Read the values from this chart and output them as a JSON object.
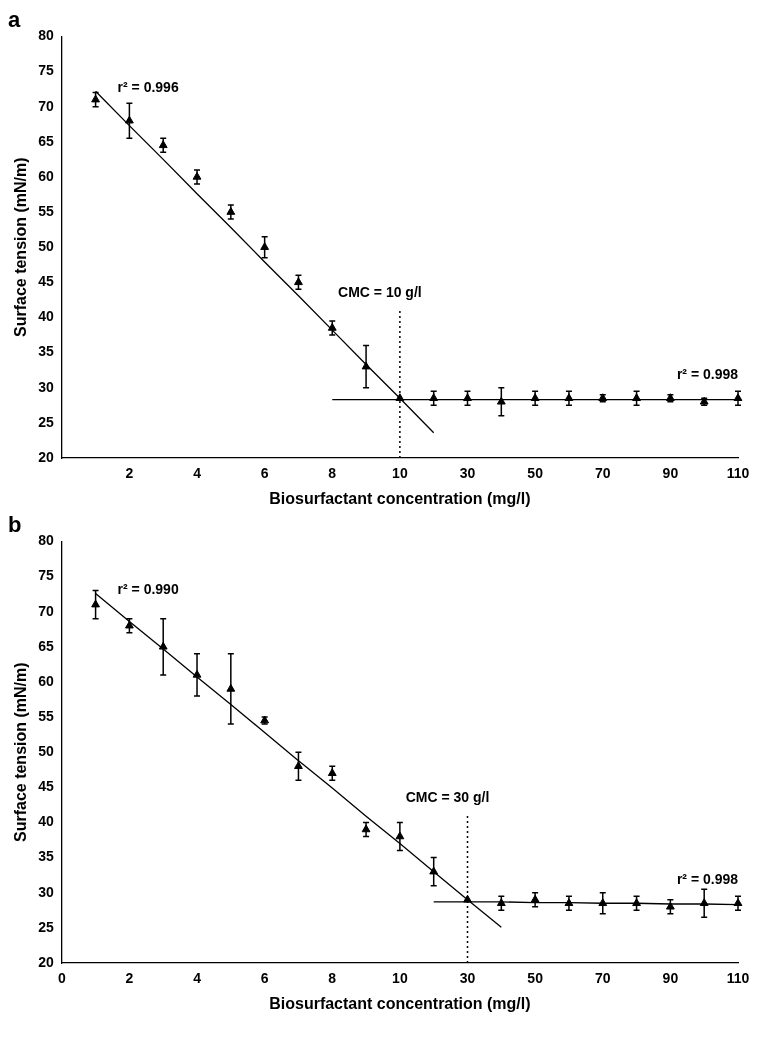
{
  "chart_data": [
    {
      "type": "scatter",
      "title": "a",
      "xlabel": "Biosurfactant concentration (mg/l)",
      "ylabel": "Surface tension (mN/m)",
      "categories": [
        null,
        null,
        "2",
        null,
        "4",
        null,
        "6",
        null,
        "8",
        null,
        "10",
        null,
        "30",
        null,
        "50",
        null,
        "70",
        null,
        "90",
        null,
        "110"
      ],
      "series": [
        {
          "type": "scatter",
          "color": "#000000",
          "marker": "triangle",
          "values": [
            null,
            71,
            68,
            64.5,
            60,
            55,
            50,
            45,
            38.5,
            33,
            28.5,
            28.5,
            28.5,
            28,
            28.5,
            28.5,
            28.5,
            28.5,
            28.5,
            28,
            28.5
          ],
          "errors": [
            null,
            1,
            2.5,
            1,
            1,
            1,
            1.5,
            1,
            1,
            3,
            null,
            1,
            1,
            2,
            1,
            1,
            0.5,
            1,
            0.5,
            0.5,
            1
          ]
        },
        {
          "type": "line",
          "name": "r² = 0.996",
          "color": "#000000",
          "marker": "none",
          "line_style": "solid",
          "values": [
            null,
            72.2,
            67.3,
            62.5,
            57.6,
            52.8,
            47.9,
            43.1,
            38.2,
            33.3,
            28.5,
            23.6,
            null,
            null,
            null,
            null,
            null,
            null,
            null,
            null,
            null
          ]
        },
        {
          "type": "line",
          "name": "r² = 0.998",
          "color": "#000000",
          "marker": "none",
          "line_style": "solid",
          "values": [
            null,
            null,
            null,
            null,
            null,
            null,
            null,
            null,
            28.3,
            28.3,
            28.3,
            28.3,
            28.3,
            28.3,
            28.3,
            28.3,
            28.3,
            28.3,
            28.3,
            28.3,
            28.3
          ]
        }
      ],
      "ylim": [
        20,
        80
      ],
      "yticks": [
        20,
        25,
        30,
        35,
        40,
        45,
        50,
        55,
        60,
        65,
        70,
        75,
        80
      ],
      "grid": false,
      "legend": false,
      "ref_lines": [
        {
          "axis": "x",
          "value": "10",
          "label": "CMC = 10 g/l",
          "line_style": "dotted",
          "color": "#000000"
        }
      ]
    },
    {
      "type": "scatter",
      "title": "b",
      "xlabel": "Biosurfactant concentration (mg/l)",
      "ylabel": "Surface tension (mN/m)",
      "categories": [
        "0",
        null,
        "2",
        null,
        "4",
        null,
        "6",
        null,
        "8",
        null,
        "10",
        null,
        "30",
        null,
        "50",
        null,
        "70",
        null,
        "90",
        null,
        "110"
      ],
      "series": [
        {
          "type": "scatter",
          "color": "#000000",
          "marker": "triangle",
          "values": [
            null,
            71,
            68,
            65,
            61,
            59,
            54.5,
            48,
            47,
            39,
            38,
            33,
            29,
            28.5,
            29,
            28.5,
            28.5,
            28.5,
            28,
            28.5,
            28.5
          ],
          "errors": [
            null,
            2,
            1,
            4,
            3,
            5,
            0.5,
            2,
            1,
            1,
            2,
            2,
            null,
            1,
            1,
            1,
            1.5,
            1,
            1,
            2,
            1
          ]
        },
        {
          "type": "line",
          "name": "r² = 0.990",
          "color": "#000000",
          "marker": "none",
          "line_style": "solid",
          "values": [
            null,
            72.6,
            68.6,
            64.7,
            60.7,
            56.8,
            52.8,
            48.8,
            44.9,
            40.9,
            37,
            33,
            29,
            25.1,
            null,
            null,
            null,
            null,
            null,
            null,
            null
          ]
        },
        {
          "type": "line",
          "name": "r² = 0.998",
          "color": "#000000",
          "marker": "none",
          "line_style": "solid",
          "values": [
            null,
            null,
            null,
            null,
            null,
            null,
            null,
            null,
            null,
            null,
            null,
            28.7,
            28.7,
            28.7,
            28.6,
            28.6,
            28.5,
            28.5,
            28.4,
            28.4,
            28.3
          ]
        }
      ],
      "ylim": [
        20,
        80
      ],
      "yticks": [
        20,
        25,
        30,
        35,
        40,
        45,
        50,
        55,
        60,
        65,
        70,
        75,
        80
      ],
      "grid": false,
      "legend": false,
      "ref_lines": [
        {
          "axis": "x",
          "value": "30",
          "label": "CMC = 30 g/l",
          "line_style": "dotted",
          "color": "#000000"
        }
      ]
    }
  ]
}
